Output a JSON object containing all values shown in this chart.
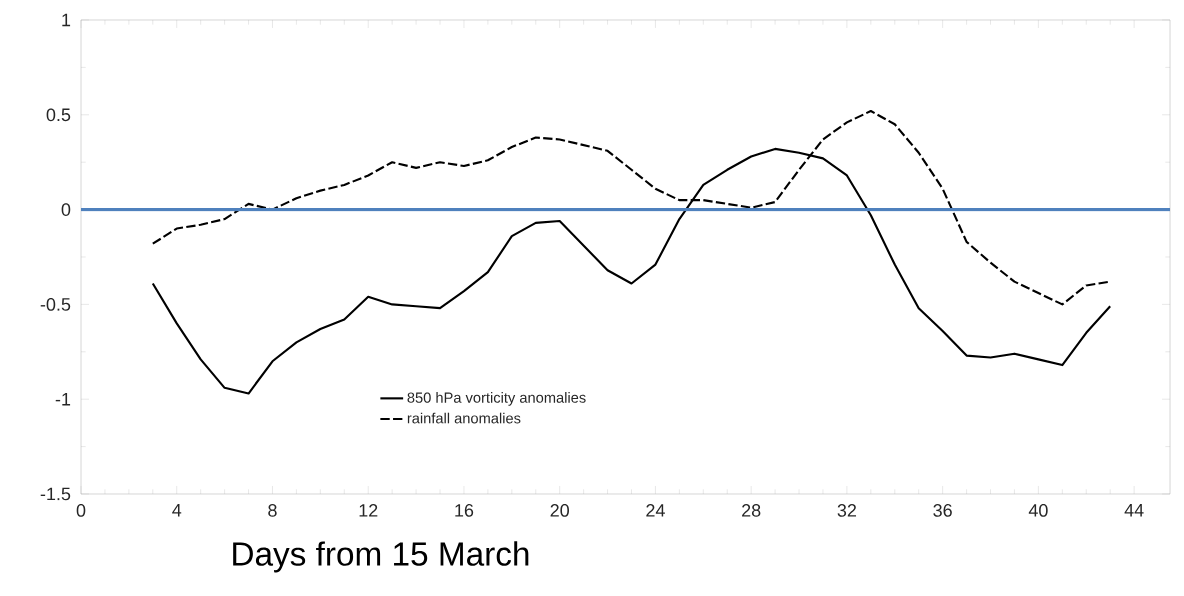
{
  "chart_data": {
    "type": "line",
    "xlabel": "Days from 15 March",
    "x": [
      3,
      4,
      5,
      6,
      7,
      8,
      9,
      10,
      11,
      12,
      13,
      14,
      15,
      16,
      17,
      18,
      19,
      20,
      21,
      22,
      23,
      24,
      25,
      26,
      27,
      28,
      29,
      30,
      31,
      32,
      33,
      34,
      35,
      36,
      37,
      38,
      39,
      40,
      41,
      42,
      43
    ],
    "series": [
      {
        "name": "850 hPa vorticity anomalies",
        "color": "#000000",
        "line_style": "solid",
        "values": [
          -0.39,
          -0.6,
          -0.79,
          -0.94,
          -0.97,
          -0.8,
          -0.7,
          -0.63,
          -0.58,
          -0.46,
          -0.5,
          -0.51,
          -0.52,
          -0.43,
          -0.33,
          -0.14,
          -0.07,
          -0.06,
          -0.19,
          -0.32,
          -0.39,
          -0.29,
          -0.05,
          0.13,
          0.21,
          0.28,
          0.32,
          0.3,
          0.27,
          0.18,
          -0.03,
          -0.29,
          -0.52,
          -0.64,
          -0.77,
          -0.78,
          -0.76,
          -0.79,
          -0.82,
          -0.65,
          -0.51
        ]
      },
      {
        "name": "rainfall anomalies",
        "color": "#000000",
        "line_style": "dashed",
        "values": [
          -0.18,
          -0.1,
          -0.08,
          -0.05,
          0.03,
          0.0,
          0.06,
          0.1,
          0.13,
          0.18,
          0.25,
          0.22,
          0.25,
          0.23,
          0.26,
          0.33,
          0.38,
          0.37,
          0.34,
          0.31,
          0.21,
          0.11,
          0.05,
          0.05,
          0.03,
          0.01,
          0.04,
          0.21,
          0.37,
          0.46,
          0.52,
          0.45,
          0.3,
          0.11,
          -0.17,
          -0.28,
          -0.38,
          -0.44,
          -0.5,
          -0.4,
          -0.38
        ]
      }
    ],
    "xlim": [
      0,
      45.5
    ],
    "xticks": [
      0,
      4,
      8,
      12,
      16,
      20,
      24,
      28,
      32,
      36,
      40,
      44
    ],
    "ylim": [
      -1.5,
      1
    ],
    "yticks": [
      -1.5,
      -1,
      -0.5,
      0,
      0.5,
      1
    ],
    "ref_lines": [
      {
        "axis": "y",
        "value": 0,
        "color": "#4f81bd"
      }
    ],
    "legend": "bottom",
    "grid": false
  }
}
